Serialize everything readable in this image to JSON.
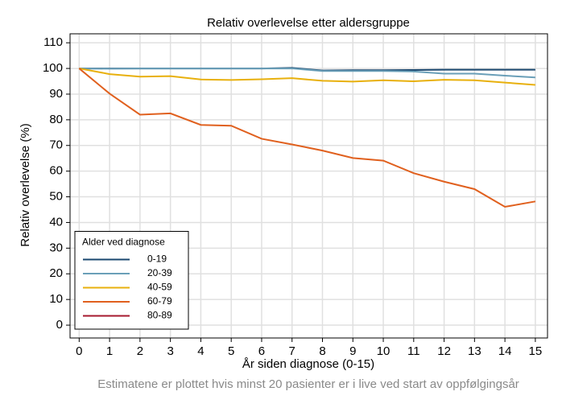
{
  "chart_data": {
    "type": "line",
    "title": "Relativ overlevelse etter aldersgruppe",
    "xlabel": "År siden diagnose (0-15)",
    "ylabel": "Relativ overlevelse (%)",
    "note": "Estimatene er plottet hvis minst 20 pasienter er i live ved start av oppfølgingsår",
    "legend_title": "Alder ved diagnose",
    "legend": "lower left",
    "grid": true,
    "x": [
      0,
      1,
      2,
      3,
      4,
      5,
      6,
      7,
      8,
      9,
      10,
      11,
      12,
      13,
      14,
      15
    ],
    "xlim": [
      -0.3,
      15.4
    ],
    "xticks": [
      0,
      1,
      2,
      3,
      4,
      5,
      6,
      7,
      8,
      9,
      10,
      11,
      12,
      13,
      14,
      15
    ],
    "ylim": [
      -5,
      113.5
    ],
    "yticks": [
      0,
      10,
      20,
      30,
      40,
      50,
      60,
      70,
      80,
      90,
      100,
      110
    ],
    "series": [
      {
        "name": "0-19",
        "color": "#1a476f",
        "values": [
          100,
          100,
          100,
          100,
          100,
          100,
          100,
          100.2,
          99.2,
          99.3,
          99.3,
          99.4,
          99.5,
          99.5,
          99.5,
          99.5
        ]
      },
      {
        "name": "20-39",
        "color": "#6a9fb8",
        "values": [
          100,
          99.9,
          100,
          100,
          100,
          100,
          100,
          100,
          99,
          99,
          99,
          98.8,
          98,
          98,
          97.2,
          96.5
        ]
      },
      {
        "name": "40-59",
        "color": "#e8b00d",
        "values": [
          100,
          97.8,
          96.8,
          97,
          95.7,
          95.5,
          95.8,
          96.2,
          95.2,
          94.9,
          95.4,
          95,
          95.6,
          95.4,
          94.5,
          93.6
        ]
      },
      {
        "name": "60-79",
        "color": "#e0601e",
        "values": [
          100,
          90.2,
          82,
          82.5,
          78,
          77.7,
          72.6,
          70.4,
          68,
          65.1,
          64.1,
          59.2,
          55.9,
          53,
          46.1,
          48.2
        ]
      },
      {
        "name": "80-89",
        "color": "#a6192e",
        "values": [
          null,
          null,
          null,
          null,
          null,
          null,
          null,
          null,
          null,
          null,
          null,
          null,
          null,
          null,
          null,
          null
        ]
      }
    ]
  }
}
